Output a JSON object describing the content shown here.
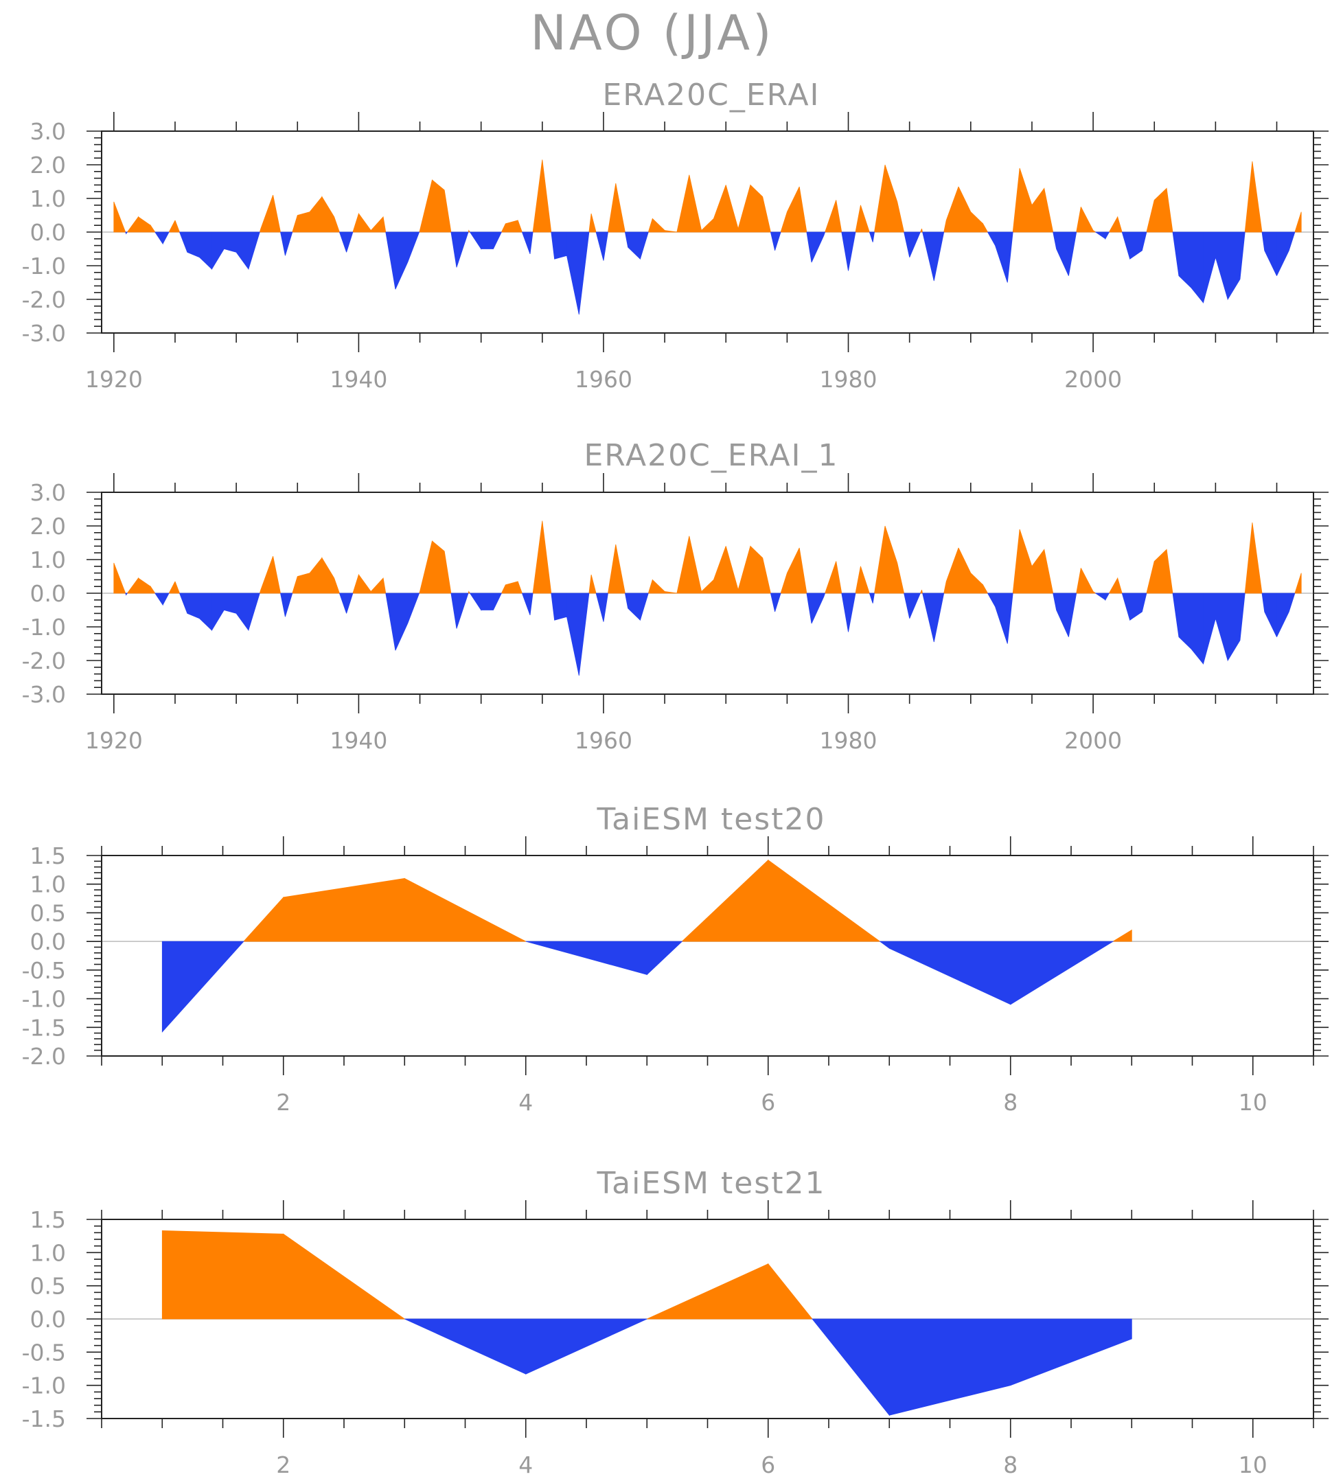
{
  "figure": {
    "title": "NAO (JJA)",
    "colors": {
      "positive": "#ff8000",
      "negative": "#2440ee",
      "axis": "#222222",
      "text": "#9a9a9a",
      "zero_line": "#bbbbbb"
    }
  },
  "chart_data": [
    {
      "type": "area",
      "title": "ERA20C_ERAI",
      "xlim": [
        1919,
        2018
      ],
      "ylim": [
        -3.0,
        3.0
      ],
      "xticks": [
        1920,
        1940,
        1960,
        1980,
        2000
      ],
      "xtick_labels": [
        "1920",
        "1940",
        "1960",
        "1980",
        "2000"
      ],
      "yticks": [
        3.0,
        2.0,
        1.0,
        0.0,
        -1.0,
        -2.0,
        -3.0
      ],
      "ytick_labels": [
        "3.0",
        "2.0",
        "1.0",
        "0.0",
        "-1.0",
        "-2.0",
        "-3.0"
      ],
      "x_start": 1920,
      "values": [
        0.9,
        -0.05,
        0.45,
        0.2,
        -0.35,
        0.35,
        -0.6,
        -0.75,
        -1.1,
        -0.5,
        -0.6,
        -1.1,
        0.1,
        1.1,
        -0.7,
        0.5,
        0.6,
        1.05,
        0.45,
        -0.6,
        0.55,
        0.05,
        0.45,
        -1.7,
        -0.9,
        0.05,
        1.55,
        1.25,
        -1.05,
        0.05,
        -0.5,
        -0.5,
        0.25,
        0.35,
        -0.65,
        2.15,
        -0.8,
        -0.7,
        -2.45,
        0.55,
        -0.85,
        1.45,
        -0.45,
        -0.8,
        0.4,
        0.05,
        0.0,
        1.7,
        0.05,
        0.4,
        1.4,
        0.1,
        1.4,
        1.05,
        -0.55,
        0.6,
        1.35,
        -0.9,
        -0.1,
        0.95,
        -1.15,
        0.8,
        -0.3,
        2.0,
        0.9,
        -0.75,
        0.1,
        -1.45,
        0.35,
        1.35,
        0.6,
        0.25,
        -0.4,
        -1.5,
        1.9,
        0.8,
        1.3,
        -0.5,
        -1.3,
        0.75,
        0.05,
        -0.2,
        0.45,
        -0.8,
        -0.55,
        0.95,
        1.3,
        -1.3,
        -1.65,
        -2.1,
        -0.75,
        -2.0,
        -1.4,
        2.1,
        -0.55,
        -1.3,
        -0.55,
        0.6
      ]
    },
    {
      "type": "area",
      "title": "ERA20C_ERAI_1",
      "xlim": [
        1919,
        2018
      ],
      "ylim": [
        -3.0,
        3.0
      ],
      "xticks": [
        1920,
        1940,
        1960,
        1980,
        2000
      ],
      "xtick_labels": [
        "1920",
        "1940",
        "1960",
        "1980",
        "2000"
      ],
      "yticks": [
        3.0,
        2.0,
        1.0,
        0.0,
        -1.0,
        -2.0,
        -3.0
      ],
      "ytick_labels": [
        "3.0",
        "2.0",
        "1.0",
        "0.0",
        "-1.0",
        "-2.0",
        "-3.0"
      ],
      "x_start": 1920,
      "values": [
        0.9,
        -0.05,
        0.45,
        0.2,
        -0.35,
        0.35,
        -0.6,
        -0.75,
        -1.1,
        -0.5,
        -0.6,
        -1.1,
        0.1,
        1.1,
        -0.7,
        0.5,
        0.6,
        1.05,
        0.45,
        -0.6,
        0.55,
        0.05,
        0.45,
        -1.7,
        -0.9,
        0.05,
        1.55,
        1.25,
        -1.05,
        0.05,
        -0.5,
        -0.5,
        0.25,
        0.35,
        -0.65,
        2.15,
        -0.8,
        -0.7,
        -2.45,
        0.55,
        -0.85,
        1.45,
        -0.45,
        -0.8,
        0.4,
        0.05,
        0.0,
        1.7,
        0.05,
        0.4,
        1.4,
        0.1,
        1.4,
        1.05,
        -0.55,
        0.6,
        1.35,
        -0.9,
        -0.1,
        0.95,
        -1.15,
        0.8,
        -0.3,
        2.0,
        0.9,
        -0.75,
        0.1,
        -1.45,
        0.35,
        1.35,
        0.6,
        0.25,
        -0.4,
        -1.5,
        1.9,
        0.8,
        1.3,
        -0.5,
        -1.3,
        0.75,
        0.05,
        -0.2,
        0.45,
        -0.8,
        -0.55,
        0.95,
        1.3,
        -1.3,
        -1.65,
        -2.1,
        -0.75,
        -2.0,
        -1.4,
        2.1,
        -0.55,
        -1.3,
        -0.55,
        0.6
      ]
    },
    {
      "type": "area",
      "title": "TaiESM test20",
      "xlim": [
        0.5,
        10.5
      ],
      "ylim": [
        -2.0,
        1.5
      ],
      "xticks": [
        2,
        4,
        6,
        8,
        10
      ],
      "xtick_labels": [
        "2",
        "4",
        "6",
        "8",
        "10"
      ],
      "yticks": [
        1.5,
        1.0,
        0.5,
        0.0,
        -0.5,
        -1.0,
        -1.5,
        -2.0
      ],
      "ytick_labels": [
        "1.5",
        "1.0",
        "0.5",
        "0.0",
        "-0.5",
        "-1.0",
        "-1.5",
        "-2.0"
      ],
      "x_start": 1,
      "values": [
        -1.58,
        0.77,
        1.1,
        0.0,
        -0.58,
        1.42,
        -0.12,
        -1.1,
        0.2
      ]
    },
    {
      "type": "area",
      "title": "TaiESM test21",
      "xlim": [
        0.5,
        10.5
      ],
      "ylim": [
        -1.5,
        1.5
      ],
      "xticks": [
        2,
        4,
        6,
        8,
        10
      ],
      "xtick_labels": [
        "2",
        "4",
        "6",
        "8",
        "10"
      ],
      "yticks": [
        1.5,
        1.0,
        0.5,
        0.0,
        -0.5,
        -1.0,
        -1.5
      ],
      "ytick_labels": [
        "1.5",
        "1.0",
        "0.5",
        "0.0",
        "-0.5",
        "-1.0",
        "-1.5"
      ],
      "x_start": 1,
      "values": [
        1.33,
        1.28,
        0.0,
        -0.83,
        0.0,
        0.83,
        -1.45,
        -1.0,
        -0.3
      ]
    }
  ]
}
